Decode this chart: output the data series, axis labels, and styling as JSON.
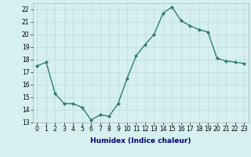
{
  "x": [
    0,
    1,
    2,
    3,
    4,
    5,
    6,
    7,
    8,
    9,
    10,
    11,
    12,
    13,
    14,
    15,
    16,
    17,
    18,
    19,
    20,
    21,
    22,
    23
  ],
  "y": [
    17.5,
    17.8,
    15.3,
    14.5,
    14.5,
    14.2,
    13.2,
    13.6,
    13.5,
    14.5,
    16.5,
    18.3,
    19.2,
    20.0,
    21.7,
    22.2,
    21.1,
    20.7,
    20.4,
    20.2,
    18.1,
    17.9,
    17.8,
    17.7
  ],
  "xlim": [
    -0.5,
    23.5
  ],
  "ylim": [
    13,
    22.5
  ],
  "yticks": [
    13,
    14,
    15,
    16,
    17,
    18,
    19,
    20,
    21,
    22
  ],
  "xticks": [
    0,
    1,
    2,
    3,
    4,
    5,
    6,
    7,
    8,
    9,
    10,
    11,
    12,
    13,
    14,
    15,
    16,
    17,
    18,
    19,
    20,
    21,
    22,
    23
  ],
  "xlabel": "Humidex (Indice chaleur)",
  "line_color": "#2e7d6e",
  "marker": "D",
  "markersize": 2.0,
  "linewidth": 1.0,
  "bg_color": "#d6f0f0",
  "grid_color": "#c0dada",
  "tick_fontsize": 5.5,
  "label_fontsize": 6.5
}
